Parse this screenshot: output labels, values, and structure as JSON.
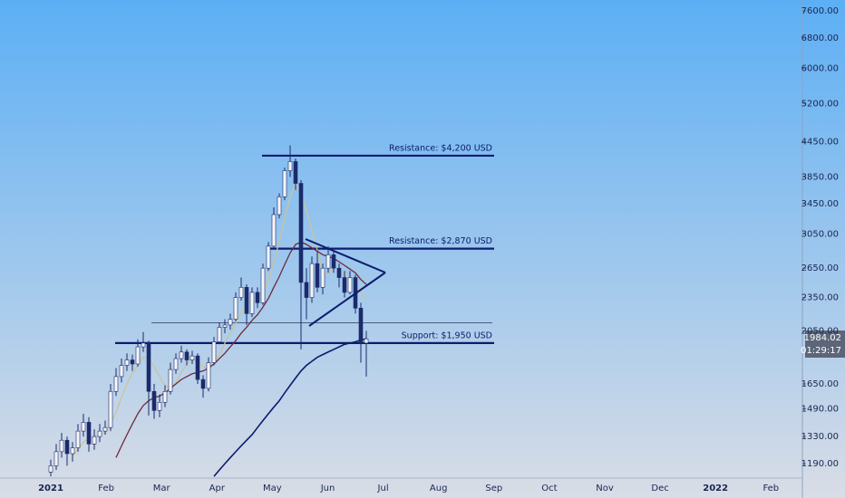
{
  "chart_data": {
    "type": "candlestick",
    "log_scale": true,
    "ylim": [
      1122,
      7945
    ],
    "yticks": [
      {
        "value": 7600,
        "label": "7600.00"
      },
      {
        "value": 6800,
        "label": "6800.00"
      },
      {
        "value": 6000,
        "label": "6000.00"
      },
      {
        "value": 5200,
        "label": "5200.00"
      },
      {
        "value": 4450,
        "label": "4450.00"
      },
      {
        "value": 3850,
        "label": "3850.00"
      },
      {
        "value": 3450,
        "label": "3450.00"
      },
      {
        "value": 3050,
        "label": "3050.00"
      },
      {
        "value": 2650,
        "label": "2650.00"
      },
      {
        "value": 2350,
        "label": "2350.00"
      },
      {
        "value": 2050,
        "label": "2050.00"
      },
      {
        "value": 1650,
        "label": "1650.00"
      },
      {
        "value": 1490,
        "label": "1490.00"
      },
      {
        "value": 1330,
        "label": "1330.00"
      },
      {
        "value": 1190,
        "label": "1190.00"
      }
    ],
    "x_labels": [
      "2021",
      "Feb",
      "Mar",
      "Apr",
      "May",
      "Jun",
      "Jul",
      "Aug",
      "Sep",
      "Oct",
      "Nov",
      "Dec",
      "2022",
      "Feb"
    ],
    "up_color": "#f4f6fa",
    "down_color": "#1b2a6b",
    "ohlc": [
      [
        1150,
        1210,
        1130,
        1180
      ],
      [
        1180,
        1290,
        1160,
        1250
      ],
      [
        1250,
        1350,
        1220,
        1310
      ],
      [
        1310,
        1330,
        1180,
        1240
      ],
      [
        1240,
        1300,
        1200,
        1270
      ],
      [
        1270,
        1400,
        1250,
        1360
      ],
      [
        1360,
        1460,
        1330,
        1410
      ],
      [
        1410,
        1440,
        1250,
        1290
      ],
      [
        1290,
        1370,
        1260,
        1330
      ],
      [
        1330,
        1400,
        1300,
        1360
      ],
      [
        1360,
        1420,
        1340,
        1380
      ],
      [
        1380,
        1650,
        1360,
        1600
      ],
      [
        1600,
        1760,
        1570,
        1700
      ],
      [
        1700,
        1830,
        1660,
        1780
      ],
      [
        1780,
        1870,
        1740,
        1820
      ],
      [
        1820,
        1860,
        1740,
        1790
      ],
      [
        1790,
        1980,
        1770,
        1920
      ],
      [
        1920,
        2040,
        1880,
        1950
      ],
      [
        1950,
        1970,
        1450,
        1600
      ],
      [
        1600,
        1650,
        1430,
        1480
      ],
      [
        1480,
        1580,
        1440,
        1530
      ],
      [
        1530,
        1640,
        1500,
        1600
      ],
      [
        1600,
        1800,
        1580,
        1750
      ],
      [
        1750,
        1870,
        1720,
        1830
      ],
      [
        1830,
        1930,
        1800,
        1880
      ],
      [
        1880,
        1900,
        1780,
        1820
      ],
      [
        1820,
        1890,
        1790,
        1850
      ],
      [
        1850,
        1870,
        1650,
        1680
      ],
      [
        1680,
        1710,
        1560,
        1620
      ],
      [
        1620,
        1840,
        1600,
        1800
      ],
      [
        1800,
        2000,
        1780,
        1960
      ],
      [
        1960,
        2120,
        1940,
        2080
      ],
      [
        2080,
        2150,
        2030,
        2100
      ],
      [
        2100,
        2200,
        2060,
        2150
      ],
      [
        2150,
        2400,
        2130,
        2350
      ],
      [
        2350,
        2550,
        2320,
        2450
      ],
      [
        2450,
        2480,
        2100,
        2200
      ],
      [
        2200,
        2450,
        2170,
        2400
      ],
      [
        2400,
        2450,
        2250,
        2300
      ],
      [
        2300,
        2700,
        2280,
        2650
      ],
      [
        2650,
        2950,
        2620,
        2900
      ],
      [
        2900,
        3400,
        2870,
        3300
      ],
      [
        3300,
        3600,
        3250,
        3550
      ],
      [
        3550,
        4000,
        3500,
        3950
      ],
      [
        3950,
        4380,
        3850,
        4100
      ],
      [
        4100,
        4150,
        3650,
        3750
      ],
      [
        3750,
        3800,
        1900,
        2500
      ],
      [
        2500,
        2650,
        2150,
        2350
      ],
      [
        2350,
        2780,
        2300,
        2700
      ],
      [
        2700,
        2850,
        2400,
        2450
      ],
      [
        2450,
        2700,
        2380,
        2650
      ],
      [
        2650,
        2900,
        2600,
        2800
      ],
      [
        2800,
        2850,
        2600,
        2650
      ],
      [
        2650,
        2700,
        2450,
        2550
      ],
      [
        2550,
        2620,
        2350,
        2400
      ],
      [
        2400,
        2620,
        2380,
        2550
      ],
      [
        2550,
        2580,
        2200,
        2250
      ],
      [
        2250,
        2300,
        1800,
        1950
      ],
      [
        1950,
        2050,
        1700,
        1984
      ]
    ],
    "moving_averages": [
      {
        "color": "#c9c49a",
        "values": [
          null,
          null,
          null,
          null,
          1230,
          1260,
          1300,
          1320,
          1330,
          1340,
          1350,
          1400,
          1470,
          1560,
          1650,
          1720,
          1780,
          1840,
          1830,
          1770,
          1700,
          1640,
          1620,
          1660,
          1730,
          1790,
          1830,
          1810,
          1770,
          1760,
          1790,
          1860,
          1950,
          2030,
          2110,
          2220,
          2280,
          2320,
          2330,
          2400,
          2520,
          2720,
          2950,
          3250,
          3550,
          3750,
          3600,
          3350,
          3100,
          2850,
          2600,
          2600,
          2650,
          2620,
          2580,
          2530,
          2480,
          2400,
          2330
        ]
      },
      {
        "color": "#6e2a3a",
        "values": [
          null,
          null,
          null,
          null,
          null,
          null,
          null,
          null,
          null,
          null,
          null,
          null,
          1220,
          1280,
          1340,
          1400,
          1460,
          1510,
          1540,
          1560,
          1570,
          1590,
          1620,
          1650,
          1680,
          1700,
          1720,
          1730,
          1740,
          1760,
          1790,
          1830,
          1870,
          1920,
          1970,
          2030,
          2080,
          2140,
          2190,
          2260,
          2340,
          2450,
          2560,
          2690,
          2820,
          2920,
          2950,
          2920,
          2880,
          2840,
          2800,
          2780,
          2760,
          2720,
          2680,
          2640,
          2600,
          2530,
          2480
        ]
      },
      {
        "color": "#0d1b6e",
        "values": [
          null,
          null,
          null,
          null,
          null,
          null,
          null,
          null,
          null,
          null,
          null,
          null,
          null,
          null,
          null,
          null,
          null,
          null,
          null,
          null,
          null,
          null,
          null,
          null,
          null,
          null,
          null,
          null,
          null,
          null,
          1130,
          1160,
          1190,
          1220,
          1250,
          1280,
          1310,
          1340,
          1380,
          1420,
          1460,
          1500,
          1540,
          1590,
          1640,
          1690,
          1740,
          1780,
          1810,
          1840,
          1860,
          1880,
          1900,
          1920,
          1940,
          1950,
          1960,
          1975,
          1985
        ]
      }
    ],
    "levels": [
      {
        "value": 4200,
        "label": "Resistance: $4,200 USD"
      },
      {
        "value": 2870,
        "label": "Resistance: $2,870 USD"
      },
      {
        "value": 1950,
        "label": "Support: $1,950 USD"
      },
      {
        "value": 2120
      }
    ],
    "last_price_label": "1984.02",
    "countdown": "01:29:17"
  }
}
